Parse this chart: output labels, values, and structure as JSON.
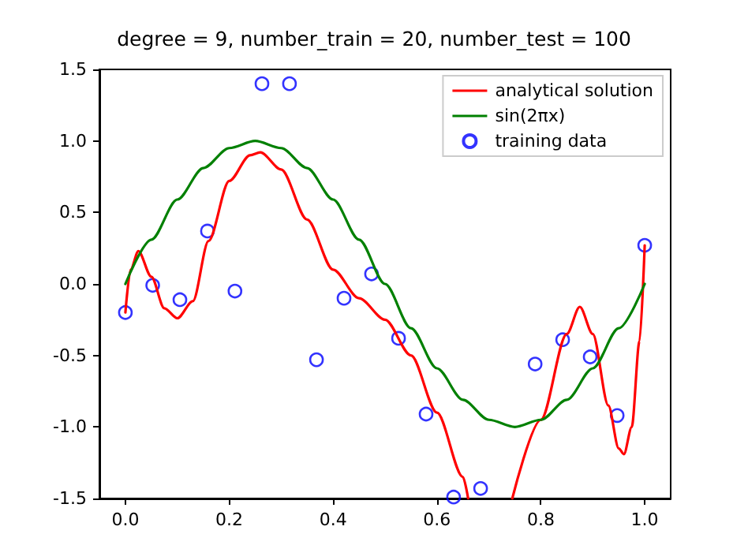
{
  "chart_data": {
    "type": "line",
    "title": "degree = 9, number_train = 20, number_test = 100",
    "xlim": [
      -0.05,
      1.05
    ],
    "xticks": [
      {
        "value": 0,
        "label": "0.0"
      },
      0.2,
      0.4,
      0.6,
      0.8,
      {
        "value": 1,
        "label": "1.0"
      }
    ],
    "ylim": [
      -1.5,
      1.5
    ],
    "yticks": [
      -1.5,
      {
        "value": -1,
        "label": "-1.0"
      },
      -0.5,
      {
        "value": 0,
        "label": "0.0"
      },
      0.5,
      {
        "value": 1,
        "label": "1.0"
      },
      1.5
    ],
    "grid": false,
    "legend": "top right",
    "series": [
      {
        "name": "analytical solution",
        "color": "#ff0000",
        "marker": "none",
        "x": [
          0,
          0.01,
          0.025,
          0.05,
          0.075,
          0.1,
          0.13,
          0.16,
          0.2,
          0.24,
          0.26,
          0.3,
          0.35,
          0.4,
          0.45,
          0.5,
          0.55,
          0.6,
          0.65,
          0.66,
          0.7,
          0.745,
          0.8,
          0.85,
          0.875,
          0.9,
          0.93,
          0.95,
          0.96,
          0.975,
          0.99,
          1
        ],
        "values": [
          -0.2,
          0.1,
          0.23,
          0.05,
          -0.17,
          -0.24,
          -0.12,
          0.3,
          0.72,
          0.9,
          0.92,
          0.8,
          0.45,
          0.1,
          -0.1,
          -0.25,
          -0.5,
          -0.9,
          -1.35,
          -1.5,
          null,
          -1.5,
          -0.95,
          -0.35,
          -0.16,
          -0.35,
          -0.85,
          -1.15,
          -1.19,
          -1,
          -0.4,
          0.27
        ]
      },
      {
        "name": "sin(2πx)",
        "color": "#008000",
        "marker": "none",
        "x": [
          0,
          0.05,
          0.1,
          0.15,
          0.2,
          0.25,
          0.3,
          0.35,
          0.4,
          0.45,
          0.5,
          0.55,
          0.6,
          0.65,
          0.7,
          0.75,
          0.8,
          0.85,
          0.9,
          0.95,
          1
        ],
        "values": [
          0,
          0.31,
          0.59,
          0.81,
          0.95,
          1,
          0.95,
          0.81,
          0.59,
          0.31,
          0,
          -0.31,
          -0.59,
          -0.81,
          -0.95,
          -1,
          -0.95,
          -0.81,
          -0.59,
          -0.31,
          0
        ]
      },
      {
        "name": "training data",
        "type": "scatter",
        "color": "#0000ff",
        "marker": "circle",
        "x": [
          0,
          0.0526,
          0.105,
          0.158,
          0.211,
          0.263,
          0.316,
          0.368,
          0.421,
          0.474,
          0.526,
          0.579,
          0.632,
          0.684,
          0.789,
          0.842,
          0.895,
          0.947,
          1
        ],
        "values": [
          -0.2,
          -0.01,
          -0.11,
          0.37,
          -0.05,
          1.4,
          1.4,
          -0.53,
          -0.1,
          0.07,
          -0.38,
          -0.91,
          -1.49,
          -1.43,
          -0.56,
          -0.39,
          -0.51,
          -0.92,
          0.27
        ]
      }
    ]
  }
}
